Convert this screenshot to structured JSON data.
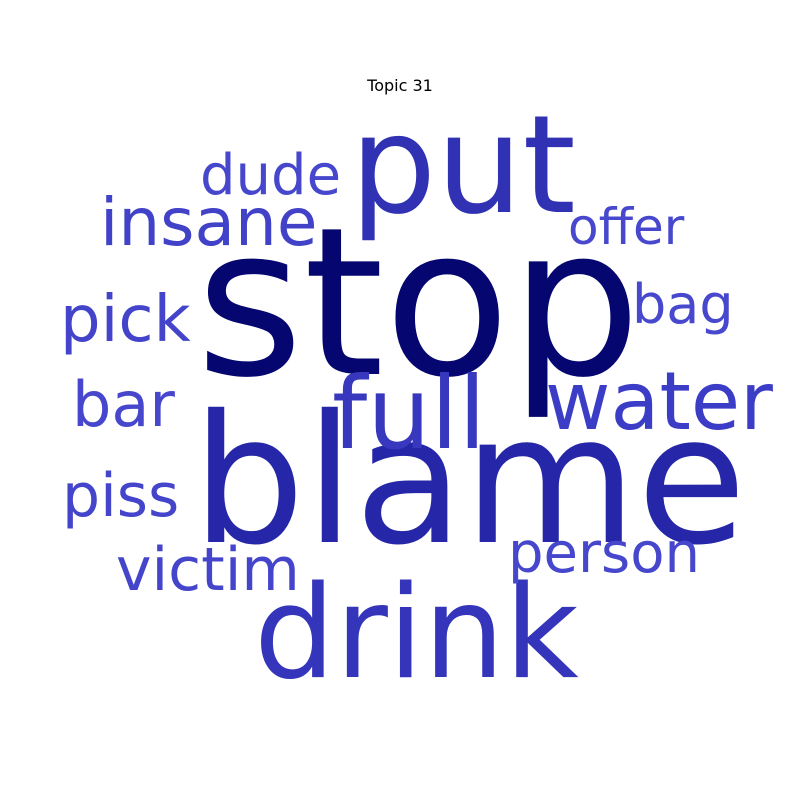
{
  "title": "Topic 31",
  "words": {
    "stop": {
      "text": "stop",
      "color": "#05066f"
    },
    "blame": {
      "text": "blame",
      "color": "#2526a8"
    },
    "put": {
      "text": "put",
      "color": "#3031b3"
    },
    "drink": {
      "text": "drink",
      "color": "#3435bb"
    },
    "full": {
      "text": "full",
      "color": "#3738bd"
    },
    "water": {
      "text": "water",
      "color": "#3c3dc6"
    },
    "insane": {
      "text": "insane",
      "color": "#4142c8"
    },
    "pick": {
      "text": "pick",
      "color": "#4344ca"
    },
    "bar": {
      "text": "bar",
      "color": "#4647cc"
    },
    "dude": {
      "text": "dude",
      "color": "#4647cc"
    },
    "offer": {
      "text": "offer",
      "color": "#4748cd"
    },
    "bag": {
      "text": "bag",
      "color": "#4748cd"
    },
    "piss": {
      "text": "piss",
      "color": "#4445cb"
    },
    "person": {
      "text": "person",
      "color": "#4647cc"
    },
    "victim": {
      "text": "victim",
      "color": "#4445cb"
    }
  }
}
